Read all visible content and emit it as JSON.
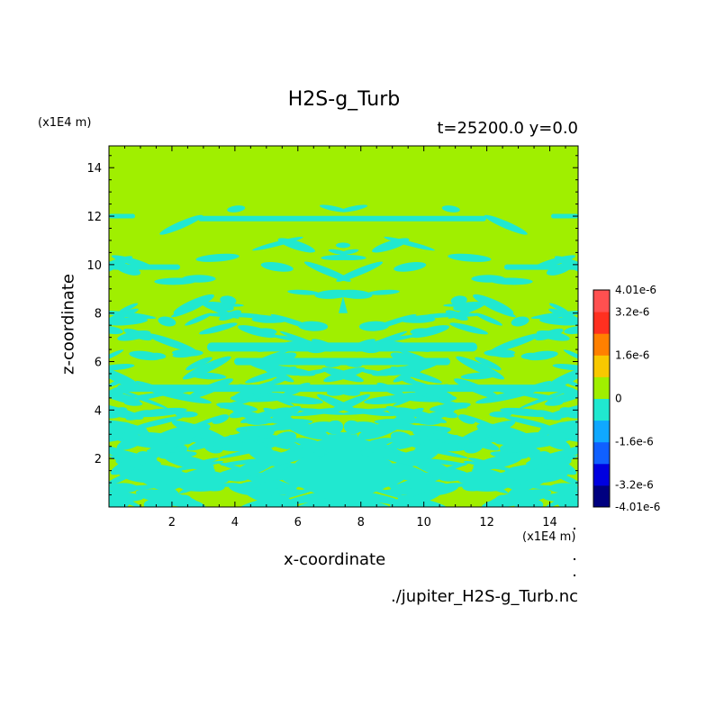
{
  "chart_data": {
    "type": "heatmap",
    "title": "H2S-g_Turb",
    "subtitle": "t=25200.0 y=0.0",
    "xlabel": "x-coordinate",
    "ylabel": "z-coordinate",
    "x_unit": "(x1E4 m)",
    "y_unit": "(x1E4 m)",
    "xlim": [
      0,
      14.9
    ],
    "ylim": [
      0,
      14.9
    ],
    "x_ticks": [
      2,
      4,
      6,
      8,
      10,
      12,
      14
    ],
    "y_ticks": [
      2,
      4,
      6,
      8,
      10,
      12,
      14
    ],
    "colorbar": {
      "min": -4.01e-06,
      "max": 4.01e-06,
      "tick_labels": [
        "4.01e-6",
        "3.2e-6",
        "1.6e-6",
        "0",
        "-1.6e-6",
        "-3.2e-6",
        "-4.01e-6"
      ],
      "tick_values": [
        4.01e-06,
        3.2e-06,
        1.6e-06,
        0,
        -1.6e-06,
        -3.2e-06,
        -4.01e-06
      ],
      "colors": [
        "#000080",
        "#0000e0",
        "#1060ff",
        "#10a8ff",
        "#20e8d0",
        "#a0ef00",
        "#f8c800",
        "#ff8000",
        "#ff3020",
        "#ff5050"
      ]
    },
    "background_color": "#a0ef00",
    "anomaly_color": "#20e8d0"
  },
  "footer": {
    "file": "./jupiter_H2S-g_Turb.nc"
  }
}
